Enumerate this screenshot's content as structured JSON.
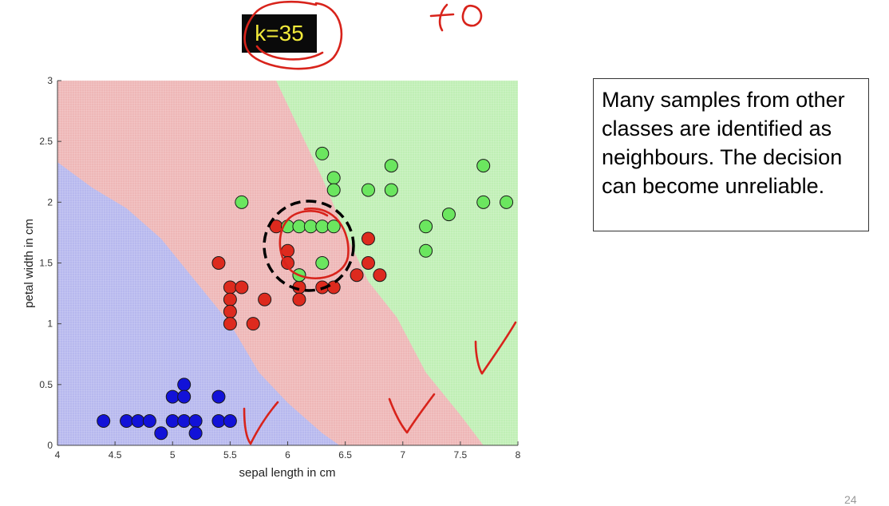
{
  "slide": {
    "k_label": "k=35",
    "annotation_text": "Many samples from other classes are identified as neighbours. The decision can become unreliable.",
    "page_number": "24"
  },
  "chart_data": {
    "type": "scatter",
    "title": "",
    "xlabel": "sepal length in cm",
    "ylabel": "petal width in cm",
    "xlim": [
      4,
      8
    ],
    "ylim": [
      0,
      3
    ],
    "xticks": [
      "4",
      "4.5",
      "5",
      "5.5",
      "6",
      "6.5",
      "7",
      "7.5",
      "8"
    ],
    "yticks": [
      "0",
      "0.5",
      "1",
      "1.5",
      "2",
      "2.5",
      "3"
    ],
    "regions": [
      {
        "color": "#b7b8ee",
        "boundary": [
          [
            4.0,
            2.33
          ],
          [
            4.3,
            2.12
          ],
          [
            4.6,
            1.95
          ],
          [
            4.9,
            1.7
          ],
          [
            5.2,
            1.35
          ],
          [
            5.5,
            1.0
          ],
          [
            5.75,
            0.6
          ],
          [
            6.0,
            0.35
          ],
          [
            6.3,
            0.1
          ],
          [
            6.45,
            0.0
          ]
        ]
      },
      {
        "color": "#eeb7b7",
        "boundary": [
          [
            5.9,
            3.0
          ],
          [
            6.1,
            2.6
          ],
          [
            6.3,
            2.2
          ],
          [
            6.5,
            1.75
          ],
          [
            6.7,
            1.35
          ],
          [
            6.95,
            1.05
          ],
          [
            7.2,
            0.6
          ],
          [
            7.5,
            0.25
          ],
          [
            7.7,
            0.0
          ]
        ]
      },
      {
        "color": "#c0efb5"
      }
    ],
    "series": [
      {
        "color": "#1212d8",
        "points": [
          [
            4.4,
            0.2
          ],
          [
            4.6,
            0.2
          ],
          [
            4.7,
            0.2
          ],
          [
            4.8,
            0.2
          ],
          [
            4.9,
            0.1
          ],
          [
            5.0,
            0.4
          ],
          [
            5.0,
            0.2
          ],
          [
            5.1,
            0.5
          ],
          [
            5.1,
            0.4
          ],
          [
            5.1,
            0.2
          ],
          [
            5.2,
            0.2
          ],
          [
            5.2,
            0.1
          ],
          [
            5.4,
            0.4
          ],
          [
            5.4,
            0.2
          ],
          [
            5.5,
            0.2
          ]
        ]
      },
      {
        "color": "#dd2a1e",
        "points": [
          [
            5.4,
            1.5
          ],
          [
            5.5,
            1.3
          ],
          [
            5.5,
            1.2
          ],
          [
            5.5,
            1.1
          ],
          [
            5.5,
            1.0
          ],
          [
            5.6,
            1.3
          ],
          [
            5.7,
            1.0
          ],
          [
            5.8,
            1.2
          ],
          [
            5.9,
            1.8
          ],
          [
            6.0,
            1.6
          ],
          [
            6.0,
            1.5
          ],
          [
            6.1,
            1.4
          ],
          [
            6.1,
            1.3
          ],
          [
            6.1,
            1.2
          ],
          [
            6.3,
            1.3
          ],
          [
            6.4,
            1.3
          ],
          [
            6.6,
            1.4
          ],
          [
            6.7,
            1.7
          ],
          [
            6.7,
            1.5
          ],
          [
            6.8,
            1.4
          ]
        ]
      },
      {
        "color": "#6be65f",
        "points": [
          [
            5.6,
            2.0
          ],
          [
            6.0,
            1.8
          ],
          [
            6.1,
            1.8
          ],
          [
            6.1,
            1.4
          ],
          [
            6.2,
            1.8
          ],
          [
            6.3,
            2.4
          ],
          [
            6.3,
            1.8
          ],
          [
            6.3,
            1.5
          ],
          [
            6.4,
            2.2
          ],
          [
            6.4,
            2.1
          ],
          [
            6.4,
            1.8
          ],
          [
            6.7,
            2.1
          ],
          [
            6.9,
            2.3
          ],
          [
            6.9,
            2.1
          ],
          [
            7.2,
            1.8
          ],
          [
            7.2,
            1.6
          ],
          [
            7.4,
            1.9
          ],
          [
            7.7,
            2.3
          ],
          [
            7.7,
            2.0
          ],
          [
            7.9,
            2.0
          ]
        ]
      }
    ]
  }
}
